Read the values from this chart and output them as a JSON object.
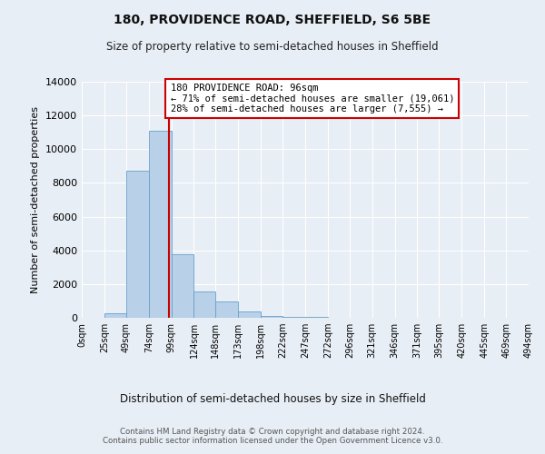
{
  "title1": "180, PROVIDENCE ROAD, SHEFFIELD, S6 5BE",
  "title2": "Size of property relative to semi-detached houses in Sheffield",
  "xlabel": "Distribution of semi-detached houses by size in Sheffield",
  "ylabel": "Number of semi-detached properties",
  "footer": "Contains HM Land Registry data © Crown copyright and database right 2024.\nContains public sector information licensed under the Open Government Licence v3.0.",
  "property_label": "180 PROVIDENCE ROAD: 96sqm",
  "annotation_line1": "← 71% of semi-detached houses are smaller (19,061)",
  "annotation_line2": "28% of semi-detached houses are larger (7,555) →",
  "bin_edges": [
    0,
    25,
    49,
    74,
    99,
    124,
    148,
    173,
    198,
    222,
    247,
    272,
    296,
    321,
    346,
    371,
    395,
    420,
    445,
    469,
    494
  ],
  "bar_values": [
    0,
    250,
    8700,
    11100,
    3750,
    1550,
    950,
    370,
    130,
    75,
    75,
    0,
    0,
    0,
    0,
    0,
    0,
    0,
    0,
    0
  ],
  "bar_color": "#b8d0e8",
  "bar_edge_color": "#6aa0c8",
  "vline_color": "#cc0000",
  "vline_x": 96,
  "ylim": [
    0,
    14000
  ],
  "yticks": [
    0,
    2000,
    4000,
    6000,
    8000,
    10000,
    12000,
    14000
  ],
  "background_color": "#e8eef5",
  "grid_color": "#ffffff",
  "annotation_box_color": "#ffffff",
  "annotation_box_edge": "#cc0000"
}
